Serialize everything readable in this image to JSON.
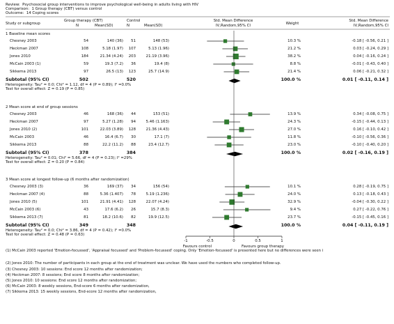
{
  "header": {
    "review": "Review:  Psychosocial group interventions to improve psychological well-being in adults living with HIV",
    "comparison": "Comparison:  1 Group therapy (CBT) versus control",
    "outcome": "Outcome:  14 Coping scores"
  },
  "columns": {
    "study": "Study or subgroup",
    "group": "Group therapy (CBT)",
    "n1": "N",
    "mean1": "Mean(SD)",
    "control": "Control",
    "n2": "N",
    "mean2": "Mean(SD)",
    "smd1": "Std. Mean Difference",
    "smd1b": "IV,Random,95% CI",
    "weight": "Weight",
    "smd2": "Std. Mean Difference",
    "smd2b": "IV,Random,95% CI"
  },
  "groups": [
    {
      "title": "1 Baseline mean scores",
      "rows": [
        {
          "study": "Chesney 2003",
          "n1": "54",
          "m1": "140 (36)",
          "n2": "51",
          "m2": "148 (53)",
          "w": "10.3 %",
          "ci": "-0.18 [ -0.56, 0.21 ]",
          "est": -0.18,
          "lo": -0.56,
          "hi": 0.21,
          "wt": 10.3
        },
        {
          "study": "Heckman 2007",
          "n1": "108",
          "m1": "5.18 (1.97)",
          "n2": "107",
          "m2": "5.13 (1.96)",
          "w": "21.2 %",
          "ci": "0.03 [ -0.24, 0.29 ]",
          "est": 0.03,
          "lo": -0.24,
          "hi": 0.29,
          "wt": 21.2
        },
        {
          "study": "Jones 2010",
          "n1": "184",
          "m1": "21.34 (4.24)",
          "n2": "203",
          "m2": "21.19 (3.96)",
          "w": "38.2 %",
          "ci": "0.04 [ -0.16, 0.24 ]",
          "est": 0.04,
          "lo": -0.16,
          "hi": 0.24,
          "wt": 38.2
        },
        {
          "study": "McCain 2003 (1)",
          "n1": "59",
          "m1": "19.3 (7.2)",
          "n2": "36",
          "m2": "19.4 (8)",
          "w": "8.8 %",
          "ci": "-0.01 [ -0.43, 0.40 ]",
          "est": -0.01,
          "lo": -0.43,
          "hi": 0.4,
          "wt": 8.8
        },
        {
          "study": "Sikkema 2013",
          "n1": "97",
          "m1": "26.5 (13)",
          "n2": "123",
          "m2": "25.7 (14.9)",
          "w": "21.4 %",
          "ci": "0.06 [ -0.21, 0.32 ]",
          "est": 0.06,
          "lo": -0.21,
          "hi": 0.32,
          "wt": 21.4
        }
      ],
      "subtotal": {
        "label": "Subtotal (95% CI)",
        "n1": "502",
        "n2": "520",
        "w": "100.0 %",
        "ci": "0.01 [ -0.11, 0.14 ]",
        "est": 0.01,
        "lo": -0.11,
        "hi": 0.14
      },
      "het": "Heterogeneity: Tau² = 0.0; Chi² = 1.12, df = 4 (P = 0.89); I² =0.0%",
      "overall": "Test for overall effect: Z = 0.19 (P = 0.85)"
    },
    {
      "title": "2 Mean score at end of group sessions",
      "rows": [
        {
          "study": "Chesney 2003",
          "n1": "46",
          "m1": "168 (36)",
          "n2": "44",
          "m2": "153 (51)",
          "w": "13.9 %",
          "ci": "0.34 [ -0.08, 0.75 ]",
          "est": 0.34,
          "lo": -0.08,
          "hi": 0.75,
          "wt": 13.9
        },
        {
          "study": "Heckman 2007",
          "n1": "97",
          "m1": "5.27 (1.28)",
          "n2": "94",
          "m2": "5.46 (1.163)",
          "w": "24.3 %",
          "ci": "-0.15 [ -0.44, 0.13 ]",
          "est": -0.15,
          "lo": -0.44,
          "hi": 0.13,
          "wt": 24.3
        },
        {
          "study": "Jones 2010 (2)",
          "n1": "101",
          "m1": "22.03 (3.89)",
          "n2": "128",
          "m2": "21.36 (4.43)",
          "w": "27.0 %",
          "ci": "0.16 [ -0.10, 0.42 ]",
          "est": 0.16,
          "lo": -0.1,
          "hi": 0.42,
          "wt": 27.0
        },
        {
          "study": "McCain 2003",
          "n1": "46",
          "m1": "16.4 (6.7)",
          "n2": "30",
          "m2": "17.1 (7)",
          "w": "11.8 %",
          "ci": "-0.10 [ -0.56, 0.36 ]",
          "est": -0.1,
          "lo": -0.56,
          "hi": 0.36,
          "wt": 11.8
        },
        {
          "study": "Sikkema 2013",
          "n1": "88",
          "m1": "22.2 (11.2)",
          "n2": "88",
          "m2": "23.4 (12.7)",
          "w": "23.0 %",
          "ci": "-0.10 [ -0.40, 0.20 ]",
          "est": -0.1,
          "lo": -0.4,
          "hi": 0.2,
          "wt": 23.0
        }
      ],
      "subtotal": {
        "label": "Subtotal (95% CI)",
        "n1": "378",
        "n2": "384",
        "w": "100.0 %",
        "ci": "0.02 [ -0.16, 0.19 ]",
        "est": 0.02,
        "lo": -0.16,
        "hi": 0.19
      },
      "het": "Heterogeneity: Tau² = 0.01; Chi² = 5.66, df = 4 (P = 0.23); I² =29%",
      "overall": "Test for overall effect: Z = 0.20 (P = 0.84)"
    },
    {
      "title": "3 Mean score at longest follow-up (6 months after randomization)",
      "rows": [
        {
          "study": "Chesney 2003 (3)",
          "n1": "36",
          "m1": "169 (37)",
          "n2": "34",
          "m2": "156 (54)",
          "w": "10.1 %",
          "ci": "0.28 [ -0.19, 0.75 ]",
          "est": 0.28,
          "lo": -0.19,
          "hi": 0.75,
          "wt": 10.1
        },
        {
          "study": "Heckman 2007 (4)",
          "n1": "88",
          "m1": "5.36 (1.407)",
          "n2": "78",
          "m2": "5.19 (1.236)",
          "w": "24.0 %",
          "ci": "0.13 [ -0.18, 0.43 ]",
          "est": 0.13,
          "lo": -0.18,
          "hi": 0.43,
          "wt": 24.0
        },
        {
          "study": "Jones 2010 (5)",
          "n1": "101",
          "m1": "21.91 (4.41)",
          "n2": "128",
          "m2": "22.07 (4.24)",
          "w": "32.9 %",
          "ci": "-0.04 [ -0.30, 0.22 ]",
          "est": -0.04,
          "lo": -0.3,
          "hi": 0.22,
          "wt": 32.9
        },
        {
          "study": "McCain 2003 (6)",
          "n1": "43",
          "m1": "17.6 (6.2)",
          "n2": "26",
          "m2": "15.7 (8.3)",
          "w": "9.4 %",
          "ci": "0.27 [ -0.22, 0.76 ]",
          "est": 0.27,
          "lo": -0.22,
          "hi": 0.76,
          "wt": 9.4
        },
        {
          "study": "Sikkema 2013 (7)",
          "n1": "81",
          "m1": "18.2 (10.6)",
          "n2": "82",
          "m2": "19.9 (12.5)",
          "w": "23.7 %",
          "ci": "-0.15 [ -0.45, 0.16 ]",
          "est": -0.15,
          "lo": -0.45,
          "hi": 0.16,
          "wt": 23.7
        }
      ],
      "subtotal": {
        "label": "Subtotal (95% CI)",
        "n1": "349",
        "n2": "348",
        "w": "100.0 %",
        "ci": "0.04 [ -0.11, 0.19 ]",
        "est": 0.04,
        "lo": -0.11,
        "hi": 0.19
      },
      "het": "Heterogeneity: Tau² = 0.0; Chi² = 3.86, df = 4 (P = 0.42); I² =0.0%",
      "overall": "Test for overall effect: Z = 0.48 (P = 0.63)"
    }
  ],
  "axis": {
    "ticks": [
      "-1",
      "-0.5",
      "0",
      "0.5",
      "1"
    ],
    "left_label": "Favours control",
    "right_label": "Favours group therapy"
  },
  "footnotes": [
    "(1) McCain 2003 reported 'Emotion-focussed', 'Appraisal focussed' and 'Problem-focussed' coping. Only 'Emotion-focussed' is presented here but no differences were seen i",
    "(2) Jones 2010: The number of participants in each group at the end of treatment was unclear. We have used the numbers who completed follow-up.",
    "(3) Chesney 2003: 10 sessions: End score 12 months after randomization;",
    "(4) Heckman 2007: 8 sessions; End score 8 months after randomization;",
    "(5) Jones 2010: 10 sessions: End score 12 months after randomization;",
    "(6) McCain 2003: 8 weekly sessions, End-score 6 months after randomization,",
    "(7) Sikkema 2013: 15 weekly sessions, End-score 12 months after randomization,"
  ],
  "chart_data": {
    "type": "forest",
    "xlim": [
      -1,
      1
    ],
    "x_ticks": [
      -1,
      -0.5,
      0,
      0.5,
      1
    ],
    "xlabel_left": "Favours control",
    "xlabel_right": "Favours group therapy",
    "series": [
      {
        "name": "1 Baseline mean scores",
        "estimates": [
          -0.18,
          0.03,
          0.04,
          -0.01,
          0.06
        ],
        "pooled": 0.01
      },
      {
        "name": "2 Mean score at end of group sessions",
        "estimates": [
          0.34,
          -0.15,
          0.16,
          -0.1,
          -0.1
        ],
        "pooled": 0.02
      },
      {
        "name": "3 Mean score at longest follow-up (6 months after randomization)",
        "estimates": [
          0.28,
          0.13,
          -0.04,
          0.27,
          -0.15
        ],
        "pooled": 0.04
      }
    ]
  }
}
